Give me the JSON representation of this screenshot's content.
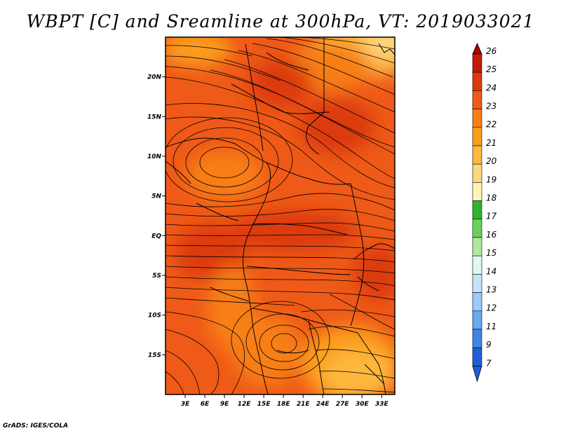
{
  "title": "WBPT [C] and Sreamline at 300hPa, VT: 2019033021",
  "footer": "GrADS: IGES/COLA",
  "map": {
    "lon_range": [
      0,
      35
    ],
    "lat_range": [
      -20,
      25
    ],
    "lat_ticks": [
      {
        "value": 20,
        "label": "20N"
      },
      {
        "value": 15,
        "label": "15N"
      },
      {
        "value": 10,
        "label": "10N"
      },
      {
        "value": 5,
        "label": "5N"
      },
      {
        "value": 0,
        "label": "EQ"
      },
      {
        "value": -5,
        "label": "5S"
      },
      {
        "value": -10,
        "label": "10S"
      },
      {
        "value": -15,
        "label": "15S"
      }
    ],
    "lon_ticks": [
      {
        "value": 3,
        "label": "3E"
      },
      {
        "value": 6,
        "label": "6E"
      },
      {
        "value": 9,
        "label": "9E"
      },
      {
        "value": 12,
        "label": "12E"
      },
      {
        "value": 15,
        "label": "15E"
      },
      {
        "value": 18,
        "label": "18E"
      },
      {
        "value": 21,
        "label": "21E"
      },
      {
        "value": 24,
        "label": "24E"
      },
      {
        "value": 27,
        "label": "27E"
      },
      {
        "value": 30,
        "label": "30E"
      },
      {
        "value": 33,
        "label": "33E"
      }
    ]
  },
  "colorbar": {
    "levels": [
      {
        "label": "26",
        "color": "#a50000"
      },
      {
        "label": "25",
        "color": "#c41a08"
      },
      {
        "label": "24",
        "color": "#dc3a10"
      },
      {
        "label": "23",
        "color": "#ef5a18"
      },
      {
        "label": "22",
        "color": "#f77f12"
      },
      {
        "label": "21",
        "color": "#fb9f1a"
      },
      {
        "label": "20",
        "color": "#fdb83e"
      },
      {
        "label": "19",
        "color": "#fed67e"
      },
      {
        "label": "18",
        "color": "#fdf5b5"
      },
      {
        "label": "17",
        "color": "#2eb52e"
      },
      {
        "label": "16",
        "color": "#6dd05d"
      },
      {
        "label": "15",
        "color": "#aee99e"
      },
      {
        "label": "14",
        "color": "#e3f8ec"
      },
      {
        "label": "13",
        "color": "#c4e4fb"
      },
      {
        "label": "12",
        "color": "#98cbf7"
      },
      {
        "label": "11",
        "color": "#6aa8f0"
      },
      {
        "label": "9",
        "color": "#3e86e6"
      },
      {
        "label": "7",
        "color": "#1f5fd6"
      }
    ],
    "bottom_color": "#1f5fd6"
  }
}
